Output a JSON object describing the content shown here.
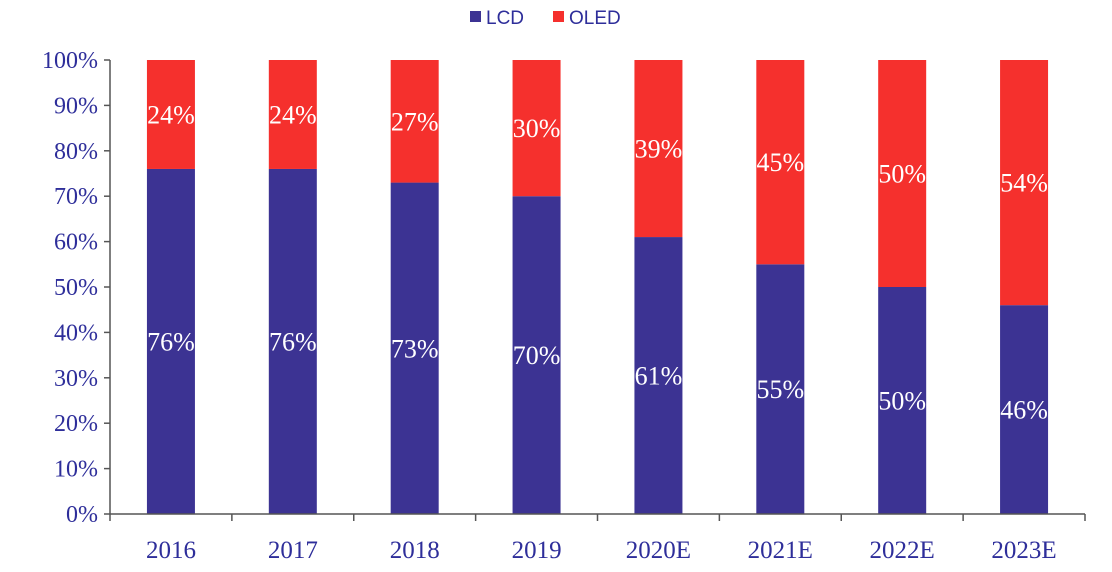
{
  "chart_data": {
    "type": "bar",
    "stacked": true,
    "categories": [
      "2016",
      "2017",
      "2018",
      "2019",
      "2020E",
      "2021E",
      "2022E",
      "2023E"
    ],
    "series": [
      {
        "name": "LCD",
        "color": "#3c3393",
        "values": [
          76,
          76,
          73,
          70,
          61,
          55,
          50,
          46
        ],
        "labels": [
          "76%",
          "76%",
          "73%",
          "70%",
          "61%",
          "55%",
          "50%",
          "46%"
        ]
      },
      {
        "name": "OLED",
        "color": "#f5302d",
        "values": [
          24,
          24,
          27,
          30,
          39,
          45,
          50,
          54
        ],
        "labels": [
          "24%",
          "24%",
          "27%",
          "30%",
          "39%",
          "45%",
          "50%",
          "54%"
        ]
      }
    ],
    "ylim": [
      0,
      100
    ],
    "yticks": [
      "0%",
      "10%",
      "20%",
      "30%",
      "40%",
      "50%",
      "60%",
      "70%",
      "80%",
      "90%",
      "100%"
    ],
    "legend_position": "top-center",
    "grid": false,
    "title": "",
    "xlabel": "",
    "ylabel": ""
  }
}
